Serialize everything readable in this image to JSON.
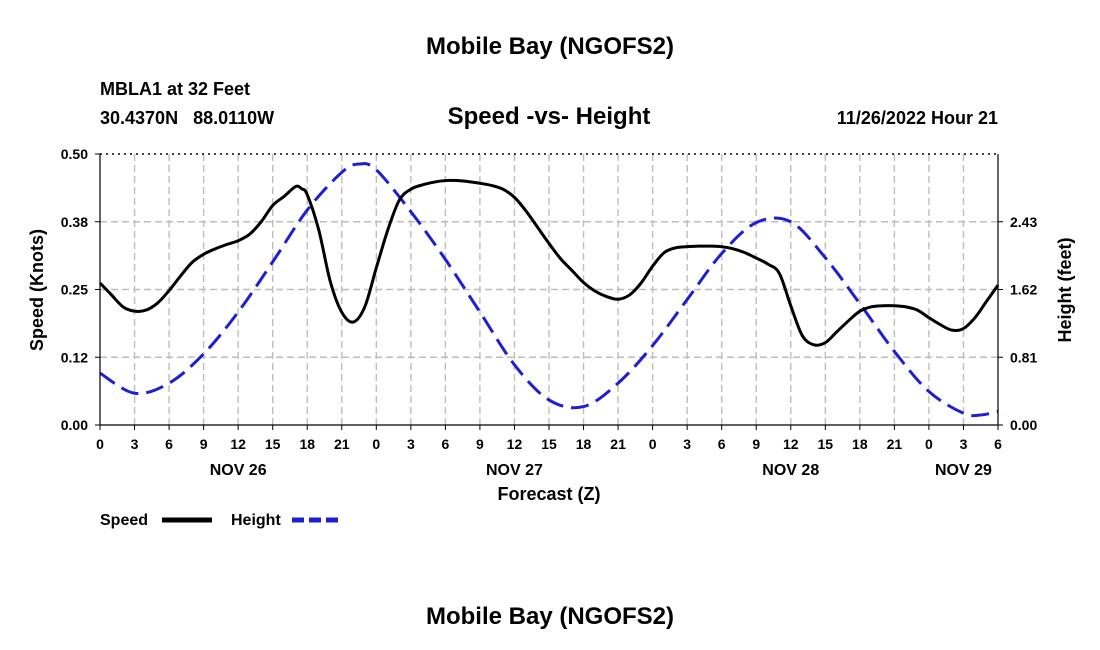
{
  "header": {
    "title": "Mobile Bay (NGOFS2)",
    "station": "MBLA1 at 32 Feet",
    "coords": "30.4370N   88.0110W",
    "subtitle": "Speed -vs- Height",
    "datetime": "11/26/2022 Hour 21"
  },
  "footer": {
    "title": "Mobile Bay (NGOFS2)"
  },
  "chart_data": {
    "type": "line",
    "title": "Speed -vs- Height",
    "xlabel": "Forecast (Z)",
    "ylabel_left": "Speed (Knots)",
    "ylabel_right": "Height (feet)",
    "x_range_hours": [
      0,
      78
    ],
    "x_tick_step_hours": 3,
    "x_tick_labels": [
      "0",
      "3",
      "6",
      "9",
      "12",
      "15",
      "18",
      "21",
      "0",
      "3",
      "6",
      "9",
      "12",
      "15",
      "18",
      "21",
      "0",
      "3",
      "6",
      "9",
      "12",
      "15",
      "18",
      "21",
      "0",
      "3",
      "6"
    ],
    "date_labels": [
      {
        "label": "NOV 26",
        "hour": 12
      },
      {
        "label": "NOV 27",
        "hour": 36
      },
      {
        "label": "NOV 28",
        "hour": 60
      },
      {
        "label": "NOV 29",
        "hour": 75
      }
    ],
    "ylim_left": [
      0,
      0.5
    ],
    "yticks_left": [
      "0.00",
      "0.12",
      "0.25",
      "0.38",
      "0.50"
    ],
    "ylim_right": [
      0,
      3.24
    ],
    "yticks_right": [
      "0.00",
      "0.81",
      "1.62",
      "2.43"
    ],
    "grid": true,
    "legend_position": "bottom-left",
    "series": [
      {
        "name": "Speed",
        "axis": "left",
        "color": "#000000",
        "dash": "solid",
        "x": [
          0,
          1,
          2,
          3,
          4,
          5,
          6,
          7,
          8,
          9,
          10,
          11,
          12,
          13,
          14,
          15,
          16,
          17,
          17.5,
          18,
          19,
          20,
          21,
          22,
          23,
          24,
          25,
          26,
          27,
          28,
          29,
          30,
          31,
          32,
          33,
          34,
          35,
          36,
          37,
          38,
          39,
          40,
          41,
          42,
          43,
          44,
          45,
          46,
          47,
          48,
          49,
          50,
          51,
          52,
          53,
          54,
          55,
          56,
          57,
          58,
          59,
          60,
          61,
          62,
          63,
          64,
          65,
          66,
          67,
          68,
          69,
          70,
          71,
          72,
          73,
          74,
          75,
          76,
          77,
          78
        ],
        "y": [
          0.262,
          0.24,
          0.218,
          0.21,
          0.212,
          0.225,
          0.248,
          0.275,
          0.3,
          0.315,
          0.325,
          0.333,
          0.34,
          0.352,
          0.375,
          0.405,
          0.422,
          0.44,
          0.436,
          0.425,
          0.36,
          0.265,
          0.208,
          0.19,
          0.218,
          0.29,
          0.36,
          0.415,
          0.435,
          0.443,
          0.448,
          0.451,
          0.451,
          0.449,
          0.446,
          0.442,
          0.435,
          0.42,
          0.395,
          0.365,
          0.335,
          0.307,
          0.285,
          0.263,
          0.247,
          0.237,
          0.232,
          0.24,
          0.262,
          0.293,
          0.318,
          0.327,
          0.329,
          0.33,
          0.33,
          0.329,
          0.325,
          0.318,
          0.308,
          0.297,
          0.28,
          0.22,
          0.165,
          0.148,
          0.152,
          0.172,
          0.192,
          0.21,
          0.218,
          0.22,
          0.22,
          0.218,
          0.212,
          0.198,
          0.185,
          0.175,
          0.178,
          0.198,
          0.228,
          0.258
        ]
      },
      {
        "name": "Height",
        "axis": "right",
        "color": "#1f1fd0",
        "dash": "dashed",
        "x": [
          0,
          3,
          6,
          9,
          12,
          15,
          18,
          21,
          22.5,
          24,
          27,
          30,
          33,
          36,
          39,
          42,
          45,
          48,
          51,
          54,
          57,
          60,
          63,
          66,
          69,
          72,
          75,
          76.5,
          78
        ],
        "y": [
          0.62,
          0.38,
          0.5,
          0.85,
          1.35,
          1.95,
          2.57,
          3.02,
          3.12,
          3.05,
          2.55,
          1.98,
          1.35,
          0.72,
          0.3,
          0.22,
          0.5,
          0.95,
          1.5,
          2.05,
          2.42,
          2.43,
          2.0,
          1.45,
          0.88,
          0.4,
          0.14,
          0.12,
          0.16
        ]
      }
    ]
  }
}
